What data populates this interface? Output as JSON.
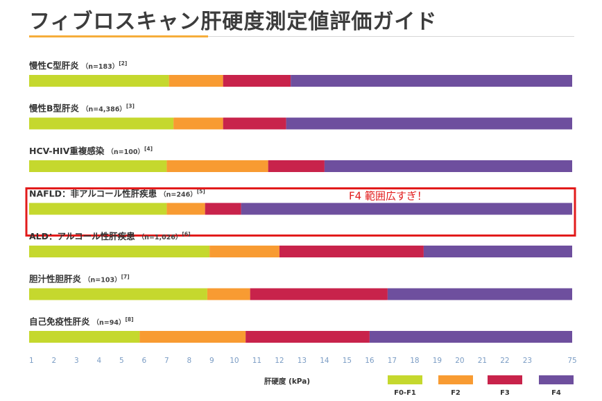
{
  "page_title": "フィブロスキャン肝硬度測定値評価ガイド",
  "chart_data": {
    "type": "bar",
    "orientation": "horizontal-stacked",
    "xlabel": "肝硬度 (kPa)",
    "ticks": [
      "1",
      "2",
      "3",
      "4",
      "5",
      "6",
      "7",
      "8",
      "9",
      "10",
      "11",
      "12",
      "13",
      "14",
      "15",
      "16",
      "17",
      "18",
      "19",
      "20",
      "21",
      "22",
      "23",
      "75"
    ],
    "stages": [
      {
        "name": "F0-F1",
        "color": "#c5d82e"
      },
      {
        "name": "F2",
        "color": "#f89b32"
      },
      {
        "name": "F3",
        "color": "#c8234b"
      },
      {
        "name": "F4",
        "color": "#6e4f9e"
      }
    ],
    "rows": [
      {
        "label": "慢性C型肝炎",
        "n": "n=183",
        "ref": "[2]",
        "cutoffs": [
          7.1,
          9.5,
          12.5
        ]
      },
      {
        "label": "慢性B型肝炎",
        "n": "n=4,386",
        "ref": "[3]",
        "cutoffs": [
          7.3,
          9.5,
          12.3
        ]
      },
      {
        "label": "HCV-HIV重複感染",
        "n": "n=100",
        "ref": "[4]",
        "cutoffs": [
          7.0,
          11.5,
          14.0
        ]
      },
      {
        "label": "NAFLD：非アルコール性肝疾患",
        "n": "n=246",
        "ref": "[5]",
        "cutoffs": [
          7.0,
          8.7,
          10.3
        ]
      },
      {
        "label": "ALD：アルコール性肝疾患",
        "n": "n=1,026",
        "ref": "[6]",
        "cutoffs": [
          8.9,
          12.0,
          18.4
        ]
      },
      {
        "label": "胆汁性胆肝炎",
        "n": "n=103",
        "ref": "[7]",
        "cutoffs": [
          8.8,
          10.7,
          16.8
        ]
      },
      {
        "label": "自己免疫性肝炎",
        "n": "n=94",
        "ref": "[8]",
        "cutoffs": [
          5.8,
          10.5,
          16.0
        ]
      }
    ],
    "x_max": 75,
    "annotation": {
      "row": "NAFLD：非アルコール性肝疾患",
      "text": "F4 範囲広すぎ！",
      "color": "#e21b1b"
    }
  }
}
